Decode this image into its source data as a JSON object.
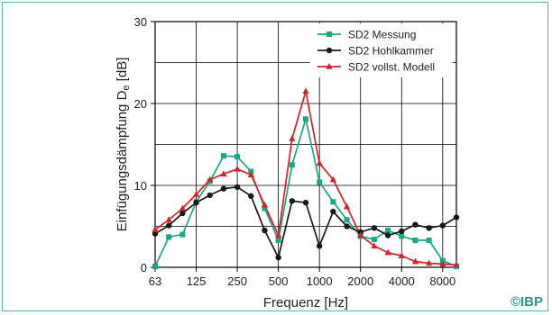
{
  "chart_data": {
    "type": "line",
    "ylabel_main": "Einfügungsdämpfung D",
    "ylabel_sub": "e",
    "ylabel_unit": " [dB]",
    "xlabel": "Frequenz [Hz]",
    "x_tick_labels": [
      "63",
      "125",
      "250",
      "500",
      "1000",
      "2000",
      "4000",
      "8000"
    ],
    "y_ticks": [
      0,
      10,
      20,
      30
    ],
    "ylim": [
      0,
      30
    ],
    "x_scale": "log",
    "x": [
      63,
      80,
      100,
      125,
      160,
      200,
      250,
      315,
      400,
      500,
      630,
      800,
      1000,
      1250,
      1600,
      2000,
      2500,
      3150,
      4000,
      5000,
      6300,
      8000,
      10000
    ],
    "grid": true,
    "legend_position": "top-right",
    "series": [
      {
        "name": "SD2 Messung",
        "color": "#1aa882",
        "marker": "square",
        "values": [
          0.1,
          3.7,
          4.0,
          8.0,
          10.5,
          13.6,
          13.5,
          11.7,
          7.2,
          3.3,
          12.5,
          18.1,
          10.4,
          8.0,
          5.8,
          3.8,
          3.4,
          4.5,
          3.8,
          3.3,
          3.3,
          0.8,
          0.1
        ]
      },
      {
        "name": "SD2 Hohlkammer",
        "color": "#1a1a1a",
        "marker": "circle",
        "values": [
          4.1,
          5.1,
          6.6,
          7.9,
          8.8,
          9.6,
          9.8,
          8.7,
          4.5,
          1.2,
          8.1,
          7.9,
          2.6,
          6.8,
          5.0,
          4.3,
          4.8,
          3.9,
          4.4,
          5.2,
          4.8,
          5.1,
          6.1
        ]
      },
      {
        "name": "SD2 vollst. Modell",
        "color": "#d72027",
        "marker": "triangle",
        "values": [
          4.6,
          5.8,
          7.2,
          8.9,
          10.7,
          11.4,
          12.0,
          11.3,
          7.6,
          3.9,
          15.7,
          21.5,
          12.7,
          10.7,
          7.4,
          3.9,
          2.6,
          1.8,
          1.4,
          0.7,
          0.5,
          0.4,
          0.3
        ]
      }
    ]
  },
  "copyright": "©IBP"
}
